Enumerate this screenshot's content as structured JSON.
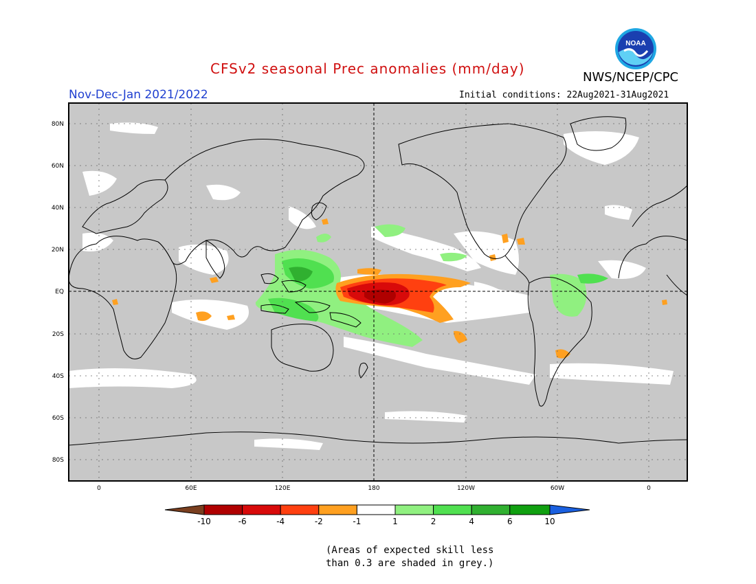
{
  "header": {
    "title": "CFSv2 seasonal Prec anomalies (mm/day)",
    "organization": "NWS/NCEP/CPC",
    "season": "Nov-Dec-Jan 2021/2022",
    "initial_conditions": "Initial conditions: 22Aug2021-31Aug2021",
    "logo_text": "NOAA"
  },
  "map": {
    "projection": "equirectangular",
    "lat_labels": [
      "80N",
      "60N",
      "40N",
      "20N",
      "EQ",
      "20S",
      "40S",
      "60S",
      "80S"
    ],
    "lon_labels": [
      "0",
      "60E",
      "120E",
      "180",
      "120W",
      "60W",
      "0"
    ],
    "background_color": "#c8c8c8",
    "grid": "dotted"
  },
  "legend": {
    "thresholds": [
      "-10",
      "-6",
      "-4",
      "-2",
      "-1",
      "1",
      "2",
      "4",
      "6",
      "10"
    ],
    "colors": [
      "#7a3f1f",
      "#b00000",
      "#d80a0a",
      "#ff4010",
      "#ffa020",
      "#ffffff",
      "#90f080",
      "#50e050",
      "#30b030",
      "#10a010",
      "#1a60e0"
    ]
  },
  "note": {
    "line1": "(Areas of expected skill less",
    "line2": "than 0.3 are shaded in grey.)"
  }
}
